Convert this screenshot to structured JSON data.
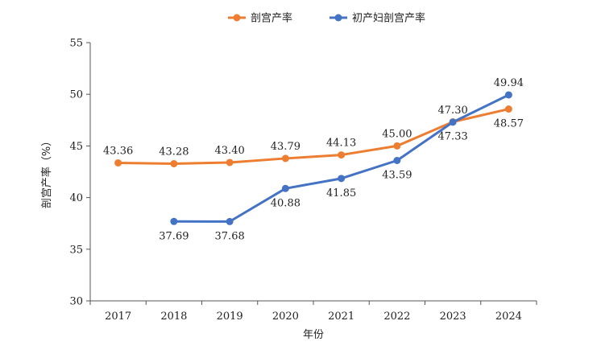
{
  "chart_data": {
    "type": "line",
    "categories": [
      "2017",
      "2018",
      "2019",
      "2020",
      "2021",
      "2022",
      "2023",
      "2024"
    ],
    "series": [
      {
        "name": "剖宫产率",
        "color": "#ED7D31",
        "values": [
          43.36,
          43.28,
          43.4,
          43.79,
          44.13,
          45.0,
          47.33,
          48.57
        ],
        "labels": [
          "43.36",
          "43.28",
          "43.40",
          "43.79",
          "44.13",
          "45.00",
          "47.33",
          "48.57"
        ]
      },
      {
        "name": "初产妇剖宫产率",
        "color": "#4472C4",
        "values": [
          null,
          37.69,
          37.68,
          40.88,
          41.85,
          43.59,
          47.3,
          49.94
        ],
        "labels": [
          null,
          "37.69",
          "37.68",
          "40.88",
          "41.85",
          "43.59",
          "47.30",
          "49.94"
        ]
      }
    ],
    "xlabel": "年份",
    "ylabel": "剖宫产率（%）",
    "ylim": [
      30,
      55
    ],
    "yticks": [
      "30",
      "35",
      "40",
      "45",
      "50",
      "55"
    ],
    "legend_position": "top",
    "grid": false
  }
}
